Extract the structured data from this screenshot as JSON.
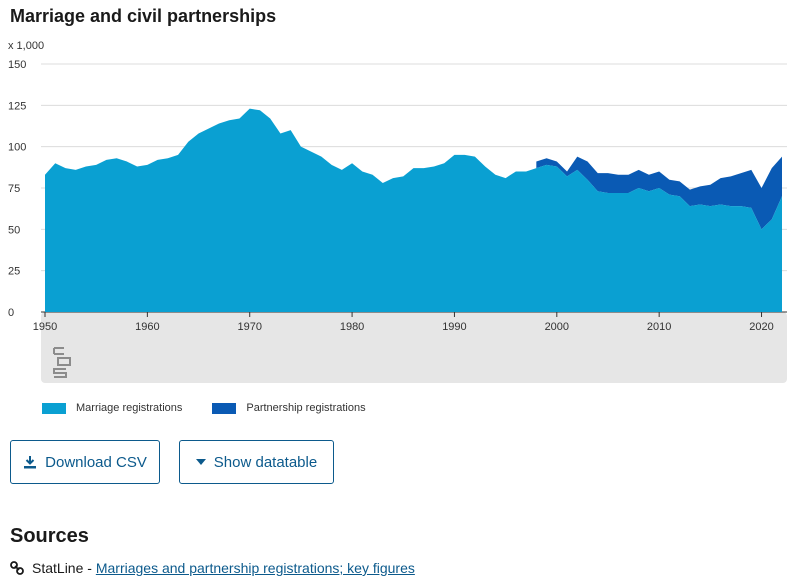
{
  "header": {
    "title": "Marriage and civil partnerships",
    "unit": "x 1,000"
  },
  "chart_data": {
    "type": "area",
    "stacked": true,
    "title": "Marriage and civil partnerships",
    "ylabel": "x 1,000",
    "ylim": [
      0,
      150
    ],
    "yticks": [
      0,
      25,
      50,
      75,
      100,
      125,
      150
    ],
    "xticks": [
      1950,
      1960,
      1970,
      1980,
      1990,
      2000,
      2010,
      2020
    ],
    "xlim": [
      1950,
      2022
    ],
    "grid": "horizontal",
    "legend_position": "bottom",
    "x": [
      1950,
      1951,
      1952,
      1953,
      1954,
      1955,
      1956,
      1957,
      1958,
      1959,
      1960,
      1961,
      1962,
      1963,
      1964,
      1965,
      1966,
      1967,
      1968,
      1969,
      1970,
      1971,
      1972,
      1973,
      1974,
      1975,
      1976,
      1977,
      1978,
      1979,
      1980,
      1981,
      1982,
      1983,
      1984,
      1985,
      1986,
      1987,
      1988,
      1989,
      1990,
      1991,
      1992,
      1993,
      1994,
      1995,
      1996,
      1997,
      1998,
      1999,
      2000,
      2001,
      2002,
      2003,
      2004,
      2005,
      2006,
      2007,
      2008,
      2009,
      2010,
      2011,
      2012,
      2013,
      2014,
      2015,
      2016,
      2017,
      2018,
      2019,
      2020,
      2021,
      2022
    ],
    "series": [
      {
        "name": "Marriage registrations",
        "color": "#0aa0d2",
        "values": [
          83,
          90,
          87,
          86,
          88,
          89,
          92,
          93,
          91,
          88,
          89,
          92,
          93,
          95,
          103,
          108,
          111,
          114,
          116,
          117,
          123,
          122,
          117,
          108,
          110,
          100,
          97,
          94,
          89,
          86,
          90,
          85,
          83,
          78,
          81,
          82,
          87,
          87,
          88,
          90,
          95,
          95,
          94,
          88,
          83,
          81,
          85,
          85,
          87,
          89,
          88,
          82,
          86,
          80,
          73,
          72,
          72,
          72,
          75,
          73,
          75,
          71,
          70,
          64,
          65,
          64,
          65,
          64,
          64,
          63,
          50,
          56,
          70
        ]
      },
      {
        "name": "Partnership registrations",
        "color": "#0a5ab4",
        "values": [
          0,
          0,
          0,
          0,
          0,
          0,
          0,
          0,
          0,
          0,
          0,
          0,
          0,
          0,
          0,
          0,
          0,
          0,
          0,
          0,
          0,
          0,
          0,
          0,
          0,
          0,
          0,
          0,
          0,
          0,
          0,
          0,
          0,
          0,
          0,
          0,
          0,
          0,
          0,
          0,
          0,
          0,
          0,
          0,
          0,
          0,
          0,
          0,
          4,
          4,
          3,
          3,
          8,
          11,
          11,
          12,
          11,
          11,
          11,
          10,
          10,
          9,
          9,
          10,
          11,
          13,
          16,
          18,
          20,
          23,
          25,
          31,
          24
        ]
      }
    ]
  },
  "logo": {
    "name": "cbs"
  },
  "buttons": {
    "download_csv": "Download CSV",
    "show_datatable": "Show datatable"
  },
  "sources": {
    "heading": "Sources",
    "prefix": "StatLine - ",
    "link_text": "Marriages and partnership registrations; key figures"
  }
}
